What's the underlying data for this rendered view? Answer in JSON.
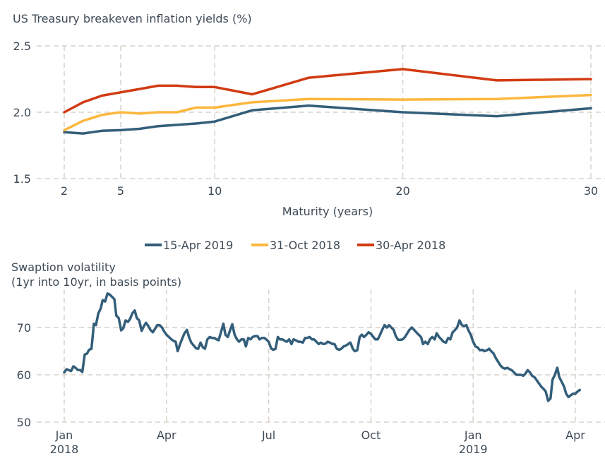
{
  "chart_data": [
    {
      "type": "line",
      "title": "US Treasury breakeven inflation yields (%)",
      "xlabel": "Maturity (years)",
      "ylabel": "",
      "xlim": [
        2,
        30
      ],
      "ylim": [
        1.5,
        2.5
      ],
      "x_ticks": [
        2,
        5,
        10,
        20,
        30
      ],
      "x_tick_labels": [
        "2",
        "5",
        "10",
        "20",
        "30"
      ],
      "y_ticks": [
        1.5,
        2.0,
        2.5
      ],
      "y_tick_labels": [
        "1.5",
        "2.0",
        "2.5"
      ],
      "grid": true,
      "legend_position": "bottom-center",
      "series": [
        {
          "name": "15-Apr 2019",
          "color": "#335e7a",
          "x": [
            2,
            3,
            4,
            5,
            6,
            7,
            8,
            9,
            10,
            12,
            15,
            20,
            25,
            30
          ],
          "values": [
            1.85,
            1.84,
            1.86,
            1.865,
            1.875,
            1.895,
            1.905,
            1.915,
            1.93,
            2.015,
            2.05,
            2.0,
            1.97,
            2.03
          ]
        },
        {
          "name": "31-Oct 2018",
          "color": "#fdb73e",
          "x": [
            2,
            3,
            4,
            5,
            6,
            7,
            8,
            9,
            10,
            12,
            15,
            20,
            25,
            30
          ],
          "values": [
            1.865,
            1.935,
            1.98,
            2.0,
            1.99,
            2.0,
            2.0,
            2.035,
            2.035,
            2.075,
            2.1,
            2.095,
            2.1,
            2.13
          ]
        },
        {
          "name": "30-Apr 2018",
          "color": "#d13a12",
          "x": [
            2,
            3,
            4,
            5,
            6,
            7,
            8,
            9,
            10,
            12,
            15,
            20,
            25,
            30
          ],
          "values": [
            2.0,
            2.075,
            2.125,
            2.15,
            2.175,
            2.2,
            2.2,
            2.19,
            2.19,
            2.135,
            2.26,
            2.325,
            2.24,
            2.25
          ]
        }
      ]
    },
    {
      "type": "line",
      "title": "Swaption volatility",
      "subtitle": "(1yr into 10yr, in basis points)",
      "xlabel": "",
      "ylabel": "",
      "ylim": [
        50,
        78
      ],
      "y_ticks": [
        50,
        60,
        70
      ],
      "y_tick_labels": [
        "50",
        "60",
        "70"
      ],
      "x_ticks": [
        "2018-01",
        "2018-04",
        "2018-07",
        "2018-10",
        "2019-01",
        "2019-04"
      ],
      "x_tick_labels": [
        [
          "Jan",
          "2018"
        ],
        [
          "Apr",
          ""
        ],
        [
          "Jul",
          ""
        ],
        [
          "Oct",
          ""
        ],
        [
          "Jan",
          "2019"
        ],
        [
          "Apr",
          ""
        ]
      ],
      "grid": true,
      "series": [
        {
          "name": "Swaption volatility",
          "color": "#335e7a",
          "x_months": [
            0.0,
            0.07,
            0.13,
            0.2,
            0.27,
            0.33,
            0.4,
            0.47,
            0.53,
            0.6,
            0.67,
            0.73,
            0.8,
            0.87,
            0.93,
            1.0,
            1.07,
            1.13,
            1.2,
            1.27,
            1.33,
            1.4,
            1.47,
            1.53,
            1.6,
            1.67,
            1.73,
            1.8,
            1.87,
            1.93,
            2.0,
            2.07,
            2.13,
            2.2,
            2.27,
            2.33,
            2.4,
            2.47,
            2.53,
            2.6,
            2.67,
            2.73,
            2.8,
            2.87,
            2.93,
            3.0,
            3.07,
            3.13,
            3.2,
            3.27,
            3.33,
            3.4,
            3.47,
            3.53,
            3.6,
            3.67,
            3.73,
            3.8,
            3.87,
            3.93,
            4.0,
            4.07,
            4.13,
            4.2,
            4.27,
            4.33,
            4.4,
            4.47,
            4.53,
            4.6,
            4.67,
            4.73,
            4.8,
            4.87,
            4.93,
            5.0,
            5.07,
            5.13,
            5.2,
            5.27,
            5.33,
            5.4,
            5.47,
            5.53,
            5.6,
            5.67,
            5.73,
            5.8,
            5.87,
            5.93,
            6.0,
            6.07,
            6.13,
            6.2,
            6.27,
            6.33,
            6.4,
            6.47,
            6.53,
            6.6,
            6.67,
            6.73,
            6.8,
            6.87,
            6.93,
            7.0,
            7.07,
            7.13,
            7.2,
            7.27,
            7.33,
            7.4,
            7.47,
            7.53,
            7.6,
            7.67,
            7.73,
            7.8,
            7.87,
            7.93,
            8.0,
            8.07,
            8.13,
            8.2,
            8.27,
            8.33,
            8.4,
            8.47,
            8.53,
            8.6,
            8.67,
            8.73,
            8.8,
            8.87,
            8.93,
            9.0,
            9.07,
            9.13,
            9.2,
            9.27,
            9.33,
            9.4,
            9.47,
            9.53,
            9.6,
            9.67,
            9.73,
            9.8,
            9.87,
            9.93,
            10.0,
            10.07,
            10.13,
            10.2,
            10.27,
            10.33,
            10.4,
            10.47,
            10.53,
            10.6,
            10.67,
            10.73,
            10.8,
            10.87,
            10.93,
            11.0,
            11.07,
            11.13,
            11.2,
            11.27,
            11.33,
            11.4,
            11.47,
            11.53,
            11.6,
            11.67,
            11.73,
            11.8,
            11.87,
            11.93,
            12.0,
            12.07,
            12.13,
            12.2,
            12.27,
            12.33,
            12.4,
            12.47,
            12.53,
            12.6,
            12.67,
            12.73,
            12.8,
            12.87,
            12.93,
            13.0,
            13.07,
            13.13,
            13.2,
            13.27,
            13.33,
            13.4,
            13.47,
            13.53,
            13.6,
            13.67,
            13.73,
            13.8,
            13.87,
            13.93,
            14.0,
            14.07,
            14.13,
            14.2,
            14.27,
            14.33,
            14.4,
            14.47,
            14.53,
            14.6,
            14.67,
            14.73,
            14.8,
            14.87,
            14.93,
            15.0,
            15.07,
            15.13,
            15.2,
            15.27,
            15.33,
            15.4,
            15.47
          ],
          "values": [
            60.5,
            61.2,
            61.0,
            60.8,
            61.8,
            61.5,
            61.0,
            61.0,
            60.6,
            64.3,
            64.5,
            65.3,
            65.5,
            70.8,
            70.5,
            73.0,
            74.0,
            75.8,
            75.5,
            77.2,
            77.0,
            76.5,
            76.0,
            72.5,
            72.0,
            69.4,
            69.8,
            71.5,
            71.2,
            71.8,
            73.0,
            73.6,
            72.0,
            71.5,
            69.3,
            70.2,
            71.0,
            70.3,
            69.5,
            69.0,
            69.8,
            70.5,
            70.5,
            70.0,
            69.2,
            68.5,
            68.0,
            67.6,
            67.2,
            67.0,
            65.0,
            66.5,
            67.8,
            68.8,
            69.5,
            67.8,
            66.8,
            66.2,
            65.6,
            65.5,
            66.8,
            65.8,
            65.5,
            67.5,
            68.0,
            67.8,
            67.8,
            67.5,
            67.3,
            69.0,
            70.8,
            68.5,
            68.0,
            69.5,
            70.7,
            68.5,
            67.5,
            67.0,
            67.5,
            67.5,
            66.0,
            67.8,
            67.5,
            68.0,
            68.2,
            68.2,
            67.5,
            67.8,
            67.8,
            67.5,
            67.0,
            65.6,
            65.3,
            65.5,
            68.0,
            67.5,
            67.5,
            67.2,
            67.0,
            67.5,
            66.5,
            67.5,
            67.3,
            67.0,
            67.0,
            66.8,
            67.8,
            67.8,
            68.0,
            67.5,
            67.5,
            67.0,
            66.5,
            66.8,
            66.5,
            66.6,
            67.0,
            66.8,
            66.5,
            66.5,
            65.5,
            65.3,
            65.5,
            66.0,
            66.2,
            66.5,
            66.8,
            65.5,
            65.0,
            65.2,
            68.0,
            68.5,
            68.0,
            68.5,
            69.0,
            68.7,
            68.0,
            67.5,
            67.5,
            68.5,
            69.5,
            70.5,
            70.0,
            70.5,
            70.0,
            69.5,
            68.2,
            67.4,
            67.4,
            67.5,
            68.0,
            68.8,
            69.5,
            70.0,
            69.5,
            69.0,
            68.5,
            68.0,
            66.5,
            67.0,
            66.5,
            67.5,
            68.0,
            67.5,
            68.8,
            68.0,
            67.5,
            67.0,
            66.8,
            67.8,
            67.5,
            69.0,
            69.5,
            70.0,
            71.5,
            70.5,
            70.3,
            70.5,
            69.3,
            68.5,
            67.0,
            66.0,
            65.8,
            65.2,
            65.3,
            65.0,
            65.2,
            65.5,
            65.0,
            64.5,
            63.5,
            62.8,
            62.0,
            61.5,
            61.3,
            61.5,
            61.2,
            61.0,
            60.5,
            60.0,
            60.0,
            60.0,
            59.8,
            60.2,
            61.0,
            60.5,
            59.8,
            59.5,
            58.8,
            58.2,
            57.5,
            57.0,
            56.5,
            54.5,
            55.0,
            59.0,
            60.0,
            61.5,
            59.5,
            58.5,
            57.5,
            56.0,
            55.3,
            55.7,
            56.0,
            56.0,
            56.5,
            56.8
          ]
        }
      ]
    }
  ],
  "legend": [
    {
      "label": "15-Apr 2019",
      "color": "#335e7a"
    },
    {
      "label": "31-Oct 2018",
      "color": "#fdb73e"
    },
    {
      "label": "30-Apr 2018",
      "color": "#d13a12"
    }
  ]
}
